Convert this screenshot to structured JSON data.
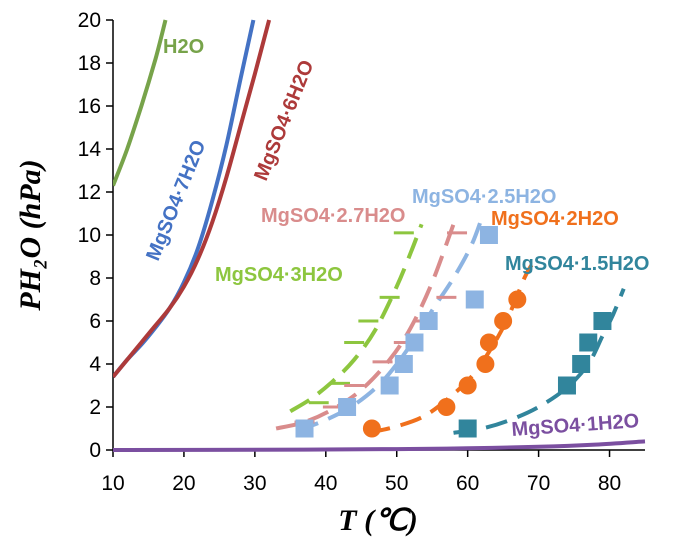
{
  "chart_data": {
    "type": "line",
    "title": "",
    "xlabel": "T (℃)",
    "ylabel": "PH₂O (hPa)",
    "xlim": [
      10,
      85
    ],
    "ylim": [
      0,
      20
    ],
    "xticks": [
      "10",
      "20",
      "30",
      "40",
      "50",
      "60",
      "70",
      "80"
    ],
    "yticks": [
      "0",
      "2",
      "4",
      "6",
      "8",
      "10",
      "12",
      "14",
      "16",
      "18",
      "20"
    ],
    "grid": false,
    "legend": "none",
    "series": [
      {
        "name": "H2O",
        "color": "#77A34A",
        "style": "solid",
        "points": [
          [
            10,
            12.3
          ],
          [
            12,
            14.0
          ],
          [
            14,
            16.0
          ],
          [
            16,
            18.2
          ],
          [
            17.4,
            20
          ]
        ]
      },
      {
        "name": "MgSO4·7H2O",
        "color": "#4472C4",
        "style": "solid",
        "points": [
          [
            10,
            3.4
          ],
          [
            12,
            4.2
          ],
          [
            14,
            4.9
          ],
          [
            16,
            5.7
          ],
          [
            18,
            6.6
          ],
          [
            20,
            7.8
          ],
          [
            22,
            9.4
          ],
          [
            24,
            11.6
          ],
          [
            26,
            14.2
          ],
          [
            28,
            17.3
          ],
          [
            29.8,
            20
          ]
        ]
      },
      {
        "name": "MgSO4·6H2O",
        "color": "#AD3A3A",
        "style": "solid",
        "points": [
          [
            10,
            3.4
          ],
          [
            12,
            4.2
          ],
          [
            14,
            5.0
          ],
          [
            16,
            5.8
          ],
          [
            18,
            6.6
          ],
          [
            20,
            7.6
          ],
          [
            22,
            8.9
          ],
          [
            24,
            10.6
          ],
          [
            26,
            12.7
          ],
          [
            28,
            15.1
          ],
          [
            30,
            17.5
          ],
          [
            32,
            20
          ]
        ]
      },
      {
        "name": "MgSO4·3H2O",
        "color": "#8DC63F",
        "style": "dashed",
        "points": [
          [
            35,
            1.8
          ],
          [
            38,
            2.4
          ],
          [
            41,
            3.2
          ],
          [
            44,
            4.2
          ],
          [
            47,
            5.6
          ],
          [
            50,
            7.6
          ],
          [
            52,
            9.2
          ],
          [
            53.5,
            10.5
          ]
        ],
        "markers": "dash",
        "marker_points": [
          [
            39,
            2.2
          ],
          [
            42,
            3.1
          ],
          [
            44,
            5.0
          ],
          [
            46,
            6.0
          ],
          [
            49,
            7.1
          ],
          [
            51,
            10.1
          ]
        ]
      },
      {
        "name": "MgSO4·2.7H2O",
        "color": "#D98C8C",
        "style": "dashed",
        "points": [
          [
            33,
            1.0
          ],
          [
            37,
            1.3
          ],
          [
            41,
            1.9
          ],
          [
            45,
            2.8
          ],
          [
            49,
            4.2
          ],
          [
            52,
            5.7
          ],
          [
            55,
            7.8
          ],
          [
            58,
            10.5
          ]
        ],
        "markers": "dash",
        "marker_points": [
          [
            37,
            1.3
          ],
          [
            41,
            2.0
          ],
          [
            44,
            3.0
          ],
          [
            48,
            4.1
          ],
          [
            51,
            5.0
          ],
          [
            54,
            6.0
          ],
          [
            57,
            7.1
          ],
          [
            58.5,
            10.1
          ]
        ]
      },
      {
        "name": "MgSO4·2.5H2O",
        "color": "#8DB4E2",
        "style": "dashed",
        "points": [
          [
            36,
            0.9
          ],
          [
            40,
            1.4
          ],
          [
            44,
            2.1
          ],
          [
            48,
            3.2
          ],
          [
            52,
            4.9
          ],
          [
            55,
            6.5
          ],
          [
            58,
            8.0
          ],
          [
            60.5,
            9.5
          ],
          [
            62,
            10.8
          ]
        ],
        "markers": "square",
        "marker_points": [
          [
            37,
            1.0
          ],
          [
            43,
            2.0
          ],
          [
            49,
            3.0
          ],
          [
            51,
            4.0
          ],
          [
            52.5,
            5.0
          ],
          [
            54.5,
            6.0
          ],
          [
            61,
            7.0
          ],
          [
            63,
            10.0
          ]
        ]
      },
      {
        "name": "MgSO4·2H2O",
        "color": "#F0701C",
        "style": "dashed",
        "points": [
          [
            46,
            0.8
          ],
          [
            50,
            1.1
          ],
          [
            54,
            1.6
          ],
          [
            58,
            2.6
          ],
          [
            61,
            3.6
          ],
          [
            64,
            5.1
          ],
          [
            66,
            6.4
          ],
          [
            68,
            8.0
          ],
          [
            69,
            8.6
          ]
        ],
        "markers": "circle",
        "marker_points": [
          [
            46.5,
            1.0
          ],
          [
            57,
            2.0
          ],
          [
            60,
            3.0
          ],
          [
            62.5,
            4.0
          ],
          [
            63,
            5.0
          ],
          [
            65,
            6.0
          ],
          [
            67,
            7.0
          ]
        ]
      },
      {
        "name": "MgSO4·1.5H2O",
        "color": "#31859C",
        "style": "dashed",
        "points": [
          [
            58,
            0.8
          ],
          [
            62,
            1.0
          ],
          [
            66,
            1.4
          ],
          [
            70,
            2.0
          ],
          [
            74,
            2.9
          ],
          [
            77,
            4.0
          ],
          [
            79,
            5.3
          ],
          [
            80.5,
            6.3
          ],
          [
            82,
            7.5
          ]
        ],
        "markers": "square",
        "marker_points": [
          [
            60,
            1.0
          ],
          [
            74,
            3.0
          ],
          [
            76,
            4.0
          ],
          [
            77,
            5.0
          ],
          [
            79,
            6.0
          ]
        ]
      },
      {
        "name": "MgSO4·1H2O",
        "color": "#7B4FA0",
        "style": "solid",
        "points": [
          [
            10,
            0.0
          ],
          [
            30,
            0.01
          ],
          [
            50,
            0.04
          ],
          [
            60,
            0.08
          ],
          [
            70,
            0.15
          ],
          [
            78,
            0.25
          ],
          [
            85,
            0.4
          ]
        ]
      }
    ],
    "labels": [
      {
        "text": "H2O",
        "color": "#77A34A"
      },
      {
        "text": "MgSO4·7H2O",
        "color": "#4472C4"
      },
      {
        "text": "MgSO4·6H2O",
        "color": "#AD3A3A"
      },
      {
        "text": "MgSO4·2.7H2O",
        "color": "#D98C8C"
      },
      {
        "text": "MgSO4·2.5H2O",
        "color": "#8DB4E2"
      },
      {
        "text": "MgSO4·2H2O",
        "color": "#F0701C"
      },
      {
        "text": "MgSO4·3H2O",
        "color": "#8DC63F"
      },
      {
        "text": "MgSO4·1.5H2O",
        "color": "#31859C"
      },
      {
        "text": "MgSO4·1H2O",
        "color": "#7B4FA0"
      }
    ]
  }
}
